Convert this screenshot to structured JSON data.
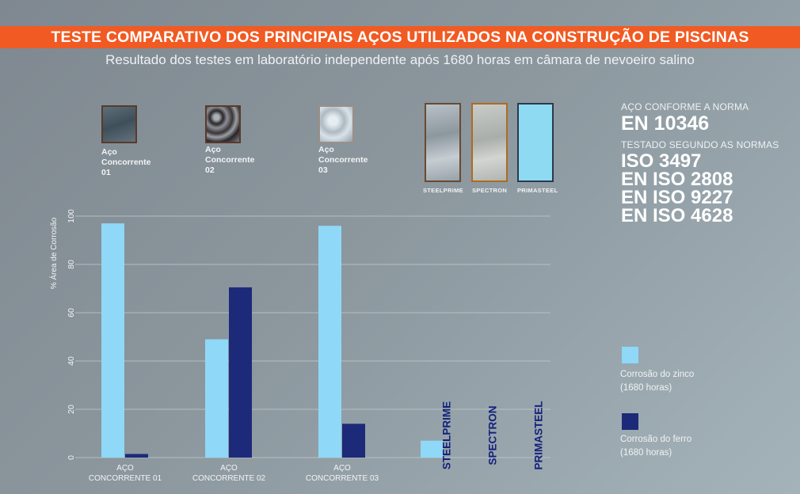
{
  "header": {
    "title": "TESTE COMPARATIVO DOS PRINCIPAIS AÇOS UTILIZADOS NA CONSTRUÇÃO DE PISCINAS",
    "subtitle": "Resultado dos testes em laboratório independente após 1680 horas em câmara de nevoeiro salino"
  },
  "samples_left": [
    {
      "line1": "Aço",
      "line2": "Concorrente 01"
    },
    {
      "line1": "Aço",
      "line2": "Concorrente 02"
    },
    {
      "line1": "Aço",
      "line2": "Concorrente 03"
    }
  ],
  "samples_right": [
    {
      "label": "STEELPRIME"
    },
    {
      "label": "SPECTRON"
    },
    {
      "label": "PRIMASTEEL"
    }
  ],
  "norms": {
    "conform_label": "AÇO CONFORME A NORMA",
    "conform_value": "EN 10346",
    "tested_label": "TESTADO SEGUNDO AS NORMAS",
    "tested_values": [
      "ISO 3497",
      "EN ISO 2808",
      "EN ISO 9227",
      "EN ISO 4628"
    ]
  },
  "legend": [
    {
      "line1": "Corrosão do zinco",
      "line2": "(1680 horas)",
      "color": "#8fd8f7"
    },
    {
      "line1": "Corrosão do ferro",
      "line2": "(1680 horas)",
      "color": "#1d2a7a"
    }
  ],
  "colors": {
    "zinc": "#8fd8f7",
    "iron": "#1d2a7a",
    "banner": "#f15a22",
    "inline_label": "#15217a"
  },
  "chart_data": {
    "type": "bar",
    "ylabel": "% Área de Corrosão",
    "ylim": [
      0,
      100
    ],
    "yticks": [
      0,
      20,
      40,
      60,
      80,
      100
    ],
    "grid": true,
    "categories": [
      {
        "line1": "AÇO",
        "line2": "CONCORRENTE 01"
      },
      {
        "line1": "AÇO",
        "line2": "CONCORRENTE 02"
      },
      {
        "line1": "AÇO",
        "line2": "CONCORRENTE 03"
      },
      {
        "line1": "",
        "line2": ""
      },
      {
        "line1": "",
        "line2": ""
      },
      {
        "line1": "",
        "line2": ""
      }
    ],
    "inline_labels": [
      "",
      "",
      "",
      "STEELPRIME",
      "SPECTRON",
      "PRIMASTEEL"
    ],
    "series": [
      {
        "name": "Corrosão do zinco",
        "values": [
          97,
          49,
          96,
          7,
          0,
          0
        ]
      },
      {
        "name": "Corrosão do ferro",
        "values": [
          1.5,
          70.5,
          14,
          0,
          0,
          0
        ]
      }
    ]
  }
}
